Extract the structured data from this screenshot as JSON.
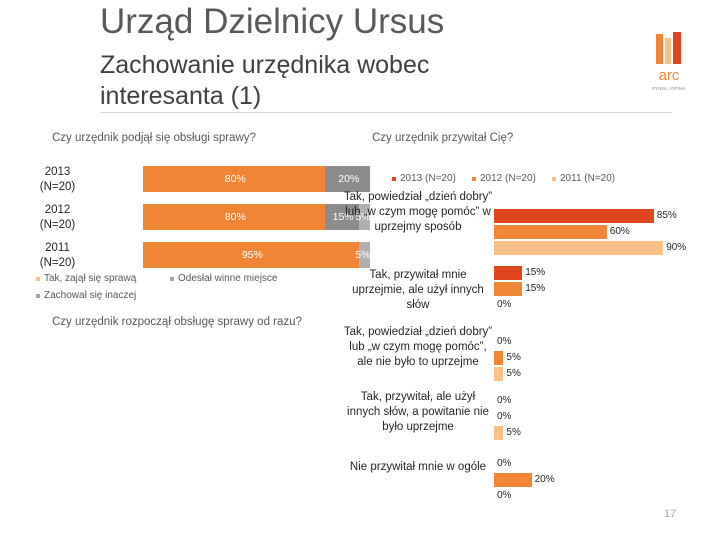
{
  "header": {
    "title": "Urząd Dzielnicy Ursus",
    "subtitle": "Zachowanie urzędnika wobec interesanta (1)",
    "logo_text": "arc",
    "logo_subtext": "RYNEK i OPINIA"
  },
  "page_number": "17",
  "colors": {
    "orange_dark": "#E0451F",
    "orange": "#F08536",
    "peach": "#F9C08A",
    "grey": "#8C8C8C",
    "legend_grey": "#A6A6A6"
  },
  "chart_data": [
    {
      "type": "bar",
      "stacked": true,
      "orientation": "horizontal",
      "title": "Czy urzędnik podjął się obsługi sprawy?",
      "categories": [
        "2013 (N=20)",
        "2012 (N=20)",
        "2011 (N=20)"
      ],
      "series": [
        {
          "name": "Tak, zajął się sprawą",
          "values": [
            80,
            80,
            95
          ],
          "labels": [
            "80%",
            "80%",
            "95%"
          ]
        },
        {
          "name": "Odesłał winne miejsce",
          "values": [
            20,
            15,
            0
          ],
          "labels": [
            "20%",
            "15%",
            ""
          ]
        },
        {
          "name": "Zachował się inaczej",
          "values": [
            0,
            5,
            5
          ],
          "labels": [
            "",
            "5%",
            "5%"
          ]
        }
      ],
      "legend": [
        "Tak, zajął się sprawą",
        "Odesłał winne miejsce",
        "Zachował się inaczej"
      ]
    },
    {
      "type": "bar",
      "orientation": "horizontal",
      "title": "Czy urzędnik przywitał Cię?",
      "legend": [
        "2013 (N=20)",
        "2012 (N=20)",
        "2011 (N=20)"
      ],
      "categories": [
        "Tak, powiedział „dzień dobry” lub „w czym mogę pomóc” w uprzejmy sposób",
        "Tak, przywitał mnie uprzejmie, ale użył innych słów",
        "Tak, powiedział „dzień dobry” lub „w czym mogę pomóc”, ale nie było to uprzejme",
        "Tak, przywitał, ale użył innych słów, a powitanie nie było uprzejme",
        "Nie przywitał mnie w ogóle"
      ],
      "series": [
        {
          "name": "2013 (N=20)",
          "values": [
            85,
            15,
            0,
            0,
            0
          ],
          "labels": [
            "85%",
            "15%",
            "0%",
            "0%",
            "0%"
          ]
        },
        {
          "name": "2012 (N=20)",
          "values": [
            60,
            15,
            5,
            0,
            20
          ],
          "labels": [
            "60%",
            "15%",
            "5%",
            "0%",
            "20%"
          ]
        },
        {
          "name": "2011 (N=20)",
          "values": [
            90,
            0,
            5,
            5,
            0
          ],
          "labels": [
            "90%",
            "0%",
            "5%",
            "5%",
            "0%"
          ]
        }
      ]
    },
    {
      "type": "bar",
      "title": "Czy urzędnik rozpoczął obsługę sprawy od razu?",
      "categories": [],
      "values": []
    }
  ]
}
